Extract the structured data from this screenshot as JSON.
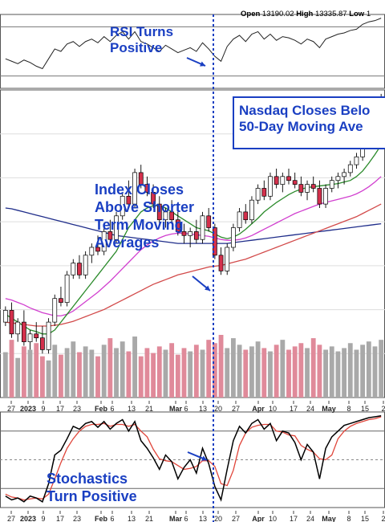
{
  "header": {
    "open_label": "Open",
    "open_value": "13190.02",
    "high_label": "High",
    "high_value": "13335.87",
    "low_label": "Low",
    "low_value": "1"
  },
  "annotations": {
    "rsi_line1": "RSI Turns",
    "rsi_line2": "Positive",
    "nasdaq_line1": "Nasdaq Closes Belo",
    "nasdaq_line2": "50-Day Moving Ave",
    "index_line1": "Index Closes",
    "index_line2": "Above Shorter",
    "index_line3": "Term Moving",
    "index_line4": "Averages",
    "stoch_line1": "Stochastics",
    "stoch_line2": "Turn Positive"
  },
  "colors": {
    "annotation": "#1a3fc2",
    "candle_up": "#ffffff",
    "candle_down": "#d4304c",
    "volume_up": "#a9a9a9",
    "volume_down": "#e08a9a",
    "ma_short": "#2a8a2a",
    "ma_mid": "#d13fcf",
    "ma_long_red": "#d24a4a",
    "ma_long_blue": "#1f2d8a",
    "stoch_k": "#000000",
    "stoch_d": "#e0453a"
  },
  "chart_data": {
    "type": "candlestick",
    "title": "",
    "x_ticks": [
      "27",
      "2023",
      "9",
      "17",
      "23",
      "Feb",
      "6",
      "13",
      "21",
      "Mar",
      "6",
      "13",
      "20",
      "27",
      "Apr",
      "10",
      "17",
      "24",
      "May",
      "8",
      "15",
      "2"
    ],
    "x_tick_positions": [
      14,
      35,
      54,
      75,
      96,
      126,
      140,
      164,
      186,
      219,
      232,
      253,
      272,
      294,
      322,
      340,
      366,
      387,
      410,
      435,
      455,
      478
    ],
    "bold_ticks": [
      "2023",
      "Feb",
      "Mar",
      "Apr",
      "May"
    ],
    "ohlc": [
      [
        10300,
        10500,
        10250,
        10450
      ],
      [
        10450,
        10550,
        10100,
        10150
      ],
      [
        10150,
        10350,
        10050,
        10300
      ],
      [
        10300,
        10450,
        10000,
        10050
      ],
      [
        10050,
        10200,
        9950,
        10150
      ],
      [
        10150,
        10300,
        10050,
        10100
      ],
      [
        10100,
        10250,
        9900,
        9950
      ],
      [
        9950,
        10350,
        9900,
        10300
      ],
      [
        10300,
        10650,
        10250,
        10600
      ],
      [
        10600,
        10750,
        10500,
        10550
      ],
      [
        10550,
        10950,
        10500,
        10900
      ],
      [
        10900,
        11100,
        10850,
        11050
      ],
      [
        11050,
        11150,
        10850,
        10900
      ],
      [
        10900,
        11200,
        10850,
        11150
      ],
      [
        11150,
        11300,
        11050,
        11250
      ],
      [
        11250,
        11400,
        11150,
        11200
      ],
      [
        11200,
        11500,
        11150,
        11450
      ],
      [
        11450,
        11600,
        11300,
        11350
      ],
      [
        11350,
        11700,
        11300,
        11650
      ],
      [
        11650,
        11950,
        11600,
        11900
      ],
      [
        11900,
        12100,
        11750,
        11800
      ],
      [
        11800,
        12250,
        11750,
        12200
      ],
      [
        12200,
        12300,
        12000,
        12050
      ],
      [
        12050,
        12150,
        11900,
        11950
      ],
      [
        11950,
        12050,
        11750,
        11800
      ],
      [
        11800,
        11900,
        11550,
        11600
      ],
      [
        11600,
        11750,
        11500,
        11700
      ],
      [
        11700,
        11850,
        11550,
        11600
      ],
      [
        11600,
        11700,
        11400,
        11450
      ],
      [
        11450,
        11550,
        11300,
        11400
      ],
      [
        11400,
        11500,
        11250,
        11450
      ],
      [
        11450,
        11600,
        11300,
        11350
      ],
      [
        11350,
        11700,
        11300,
        11650
      ],
      [
        11650,
        11750,
        11450,
        11500
      ],
      [
        11500,
        11550,
        11100,
        11150
      ],
      [
        11150,
        11250,
        10900,
        10950
      ],
      [
        10950,
        11300,
        10900,
        11250
      ],
      [
        11250,
        11550,
        11200,
        11500
      ],
      [
        11500,
        11750,
        11450,
        11700
      ],
      [
        11700,
        11800,
        11550,
        11600
      ],
      [
        11600,
        11900,
        11550,
        11850
      ],
      [
        11850,
        12050,
        11800,
        12000
      ],
      [
        12000,
        12100,
        11850,
        11900
      ],
      [
        11900,
        12200,
        11850,
        12150
      ],
      [
        12150,
        12250,
        12000,
        12050
      ],
      [
        12050,
        12200,
        11950,
        12150
      ],
      [
        12150,
        12250,
        12050,
        12100
      ],
      [
        12100,
        12200,
        12000,
        12050
      ],
      [
        12050,
        12150,
        11900,
        11950
      ],
      [
        11950,
        12100,
        11850,
        12050
      ],
      [
        12050,
        12150,
        11950,
        12000
      ],
      [
        12000,
        12100,
        11750,
        11800
      ],
      [
        11800,
        12050,
        11750,
        12000
      ],
      [
        12000,
        12150,
        11950,
        12100
      ],
      [
        12100,
        12200,
        12000,
        12150
      ],
      [
        12150,
        12250,
        12050,
        12200
      ],
      [
        12200,
        12350,
        12150,
        12300
      ],
      [
        12300,
        12450,
        12250,
        12400
      ],
      [
        12400,
        12700,
        12350,
        12650
      ],
      [
        12650,
        12900,
        12600,
        12850
      ],
      [
        12850,
        13000,
        12800,
        12950
      ],
      [
        12950,
        13200,
        12900,
        13150
      ]
    ],
    "volume": [
      55,
      70,
      48,
      62,
      58,
      66,
      50,
      45,
      64,
      52,
      60,
      68,
      55,
      62,
      58,
      50,
      64,
      72,
      60,
      68,
      56,
      74,
      50,
      60,
      54,
      62,
      58,
      66,
      52,
      60,
      56,
      64,
      58,
      70,
      66,
      76,
      60,
      72,
      64,
      58,
      62,
      68,
      60,
      56,
      64,
      70,
      58,
      62,
      66,
      60,
      72,
      64,
      58,
      62,
      56,
      60,
      66,
      58,
      64,
      68,
      62,
      70
    ],
    "ma_short": [
      10400,
      10350,
      10300,
      10250,
      10200,
      10180,
      10150,
      10150,
      10200,
      10300,
      10400,
      10500,
      10600,
      10700,
      10800,
      10900,
      11000,
      11100,
      11200,
      11350,
      11500,
      11600,
      11700,
      11750,
      11780,
      11780,
      11750,
      11700,
      11650,
      11600,
      11550,
      11500,
      11480,
      11460,
      11420,
      11380,
      11360,
      11380,
      11420,
      11480,
      11550,
      11620,
      11700,
      11760,
      11820,
      11870,
      11920,
      11960,
      11990,
      12010,
      12020,
      12030,
      12040,
      12050,
      12060,
      12080,
      12100,
      12150,
      12220,
      12320,
      12430,
      12550
    ],
    "ma_mid": [
      10600,
      10580,
      10550,
      10520,
      10480,
      10450,
      10420,
      10400,
      10380,
      10380,
      10400,
      10440,
      10500,
      10560,
      10620,
      10680,
      10750,
      10820,
      10900,
      10980,
      11060,
      11140,
      11220,
      11280,
      11330,
      11370,
      11400,
      11420,
      11430,
      11430,
      11420,
      11410,
      11400,
      11390,
      11370,
      11350,
      11340,
      11340,
      11350,
      11370,
      11400,
      11440,
      11480,
      11520,
      11560,
      11600,
      11640,
      11680,
      11710,
      11740,
      11770,
      11800,
      11820,
      11840,
      11860,
      11880,
      11900,
      11930,
      11970,
      12020,
      12080,
      12150
    ],
    "ma_long_red": [
      10300,
      10290,
      10280,
      10270,
      10260,
      10250,
      10250,
      10250,
      10260,
      10270,
      10290,
      10310,
      10340,
      10370,
      10400,
      10430,
      10460,
      10500,
      10540,
      10580,
      10620,
      10660,
      10700,
      10740,
      10780,
      10810,
      10840,
      10870,
      10900,
      10920,
      10940,
      10960,
      10980,
      11000,
      11010,
      11020,
      11040,
      11060,
      11080,
      11100,
      11130,
      11160,
      11190,
      11220,
      11250,
      11280,
      11310,
      11340,
      11370,
      11400,
      11430,
      11460,
      11490,
      11520,
      11550,
      11580,
      11610,
      11640,
      11680,
      11720,
      11760,
      11800
    ],
    "ma_long_blue": [
      11750,
      11740,
      11720,
      11700,
      11680,
      11660,
      11640,
      11620,
      11600,
      11580,
      11560,
      11540,
      11520,
      11500,
      11480,
      11460,
      11440,
      11420,
      11400,
      11390,
      11380,
      11370,
      11360,
      11350,
      11340,
      11330,
      11320,
      11310,
      11300,
      11300,
      11300,
      11300,
      11300,
      11300,
      11300,
      11300,
      11300,
      11310,
      11320,
      11330,
      11340,
      11350,
      11360,
      11370,
      11380,
      11390,
      11400,
      11410,
      11420,
      11430,
      11440,
      11450,
      11460,
      11470,
      11480,
      11490,
      11500,
      11510,
      11520,
      11530,
      11540,
      11550
    ],
    "price_range": [
      9750,
      13250
    ],
    "rsi": [
      44,
      42,
      40,
      43,
      41,
      38,
      36,
      44,
      52,
      50,
      56,
      58,
      54,
      58,
      60,
      57,
      62,
      58,
      63,
      66,
      60,
      66,
      58,
      56,
      53,
      50,
      55,
      52,
      49,
      51,
      53,
      50,
      57,
      52,
      46,
      42,
      54,
      60,
      63,
      58,
      64,
      66,
      60,
      64,
      59,
      62,
      61,
      59,
      56,
      60,
      58,
      53,
      60,
      62,
      64,
      65,
      67,
      68,
      72,
      74,
      75,
      77
    ],
    "rsi_range": [
      20,
      80
    ],
    "stoch_k": [
      12,
      8,
      10,
      6,
      12,
      10,
      6,
      25,
      55,
      60,
      72,
      85,
      82,
      88,
      90,
      84,
      90,
      82,
      88,
      92,
      80,
      90,
      70,
      62,
      52,
      40,
      55,
      48,
      30,
      42,
      50,
      36,
      62,
      46,
      22,
      8,
      40,
      70,
      85,
      78,
      88,
      92,
      82,
      88,
      70,
      80,
      78,
      68,
      50,
      66,
      58,
      30,
      62,
      74,
      80,
      86,
      88,
      90,
      92,
      94,
      95,
      96
    ],
    "stoch_d": [
      14,
      11,
      10,
      8,
      9,
      10,
      9,
      14,
      30,
      47,
      62,
      72,
      80,
      85,
      87,
      87,
      88,
      85,
      87,
      87,
      85,
      87,
      80,
      74,
      61,
      51,
      49,
      48,
      44,
      40,
      41,
      43,
      49,
      49,
      43,
      25,
      23,
      39,
      65,
      78,
      84,
      86,
      87,
      87,
      80,
      79,
      76,
      75,
      65,
      61,
      58,
      51,
      50,
      55,
      72,
      80,
      85,
      88,
      90,
      92,
      93,
      95
    ],
    "stoch_range": [
      0,
      100
    ],
    "stoch_levels": [
      80,
      20
    ]
  }
}
